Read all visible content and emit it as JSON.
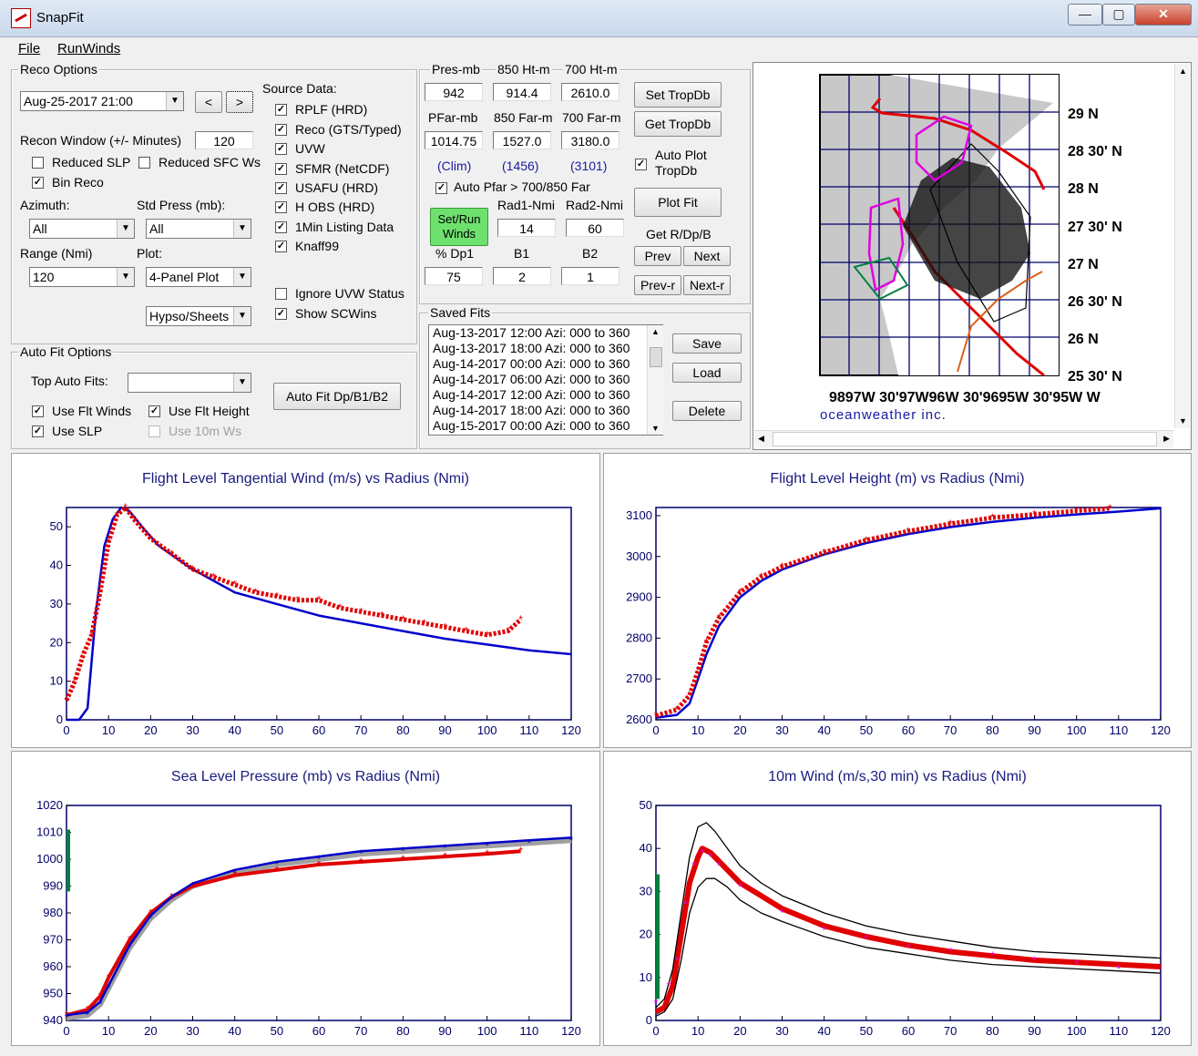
{
  "window": {
    "title": "SnapFit",
    "min": "—",
    "max": "▢",
    "close": "✕"
  },
  "menu": [
    {
      "label": "File"
    },
    {
      "label": "RunWinds"
    }
  ],
  "reco": {
    "title": "Reco Options",
    "datetime": "Aug-25-2017 21:00",
    "prev": "<",
    "next": ">",
    "window_label": "Recon Window (+/- Minutes)",
    "window_value": "120",
    "reduced_slp": "Reduced SLP",
    "reduced_sfc": "Reduced SFC Ws",
    "bin_reco": "Bin Reco",
    "azimuth_label": "Azimuth:",
    "azimuth": "All",
    "stdpress_label": "Std Press (mb):",
    "stdpress": "All",
    "range_label": "Range (Nmi)",
    "range": "120",
    "plot_label": "Plot:",
    "plot": "4-Panel Plot",
    "hypso": "Hypso/Sheets"
  },
  "source": {
    "title": "Source Data:",
    "items": [
      {
        "label": "RPLF (HRD)"
      },
      {
        "label": "Reco (GTS/Typed)"
      },
      {
        "label": "UVW"
      },
      {
        "label": "SFMR (NetCDF)"
      },
      {
        "label": "USAFU (HRD)"
      },
      {
        "label": "H OBS (HRD)"
      },
      {
        "label": "1Min Listing Data"
      },
      {
        "label": "Knaff99"
      }
    ],
    "ignore_uvw": "Ignore UVW Status",
    "show_scwins": "Show SCWins"
  },
  "params": {
    "pres_label": "Pres-mb",
    "h850_label": "850 Ht-m",
    "h700_label": "700 Ht-m",
    "pres": "942",
    "h850": "914.4",
    "h700": "2610.0",
    "pfar_label": "PFar-mb",
    "f850_label": "850 Far-m",
    "f700_label": "700 Far-m",
    "pfar": "1014.75",
    "f850": "1527.0",
    "f700": "3180.0",
    "clim1": "(Clim)",
    "clim2": "(1456)",
    "clim3": "(3101)",
    "auto_pfar": "Auto Pfar > 700/850 Far",
    "set_run": "Set/Run Winds",
    "rad1_label": "Rad1-Nmi",
    "rad2_label": "Rad2-Nmi",
    "rad1": "14",
    "rad2": "60",
    "dp1_label": "% Dp1",
    "b1_label": "B1",
    "b2_label": "B2",
    "dp1": "75",
    "b1": "2",
    "b2": "1",
    "set_tropdb": "Set TropDb",
    "get_tropdb": "Get TropDb",
    "auto_plot": "Auto Plot TropDb",
    "plot_fit": "Plot Fit",
    "get_r": "Get R/Dp/B",
    "prev": "Prev",
    "next": "Next",
    "prevr": "Prev-r",
    "nextr": "Next-r"
  },
  "saved": {
    "title": "Saved Fits",
    "items": [
      "Aug-13-2017 12:00 Azi: 000 to 360",
      "Aug-13-2017 18:00 Azi: 000 to 360",
      "Aug-14-2017 00:00 Azi: 000 to 360",
      "Aug-14-2017 06:00 Azi: 000 to 360",
      "Aug-14-2017 12:00 Azi: 000 to 360",
      "Aug-14-2017 18:00 Azi: 000 to 360",
      "Aug-15-2017 00:00 Azi: 000 to 360"
    ],
    "save": "Save",
    "load": "Load",
    "delete": "Delete"
  },
  "autofit": {
    "title": "Auto Fit Options",
    "top_label": "Top Auto Fits:",
    "use_flt_winds": "Use Flt Winds",
    "use_flt_height": "Use Flt Height",
    "use_slp": "Use SLP",
    "use_10m": "Use 10m Ws",
    "auto_fit_btn": "Auto Fit Dp/B1/B2"
  },
  "map": {
    "lat_labels": [
      "29 N",
      "28 30' N",
      "28 N",
      "27 30' N",
      "27 N",
      "26 30' N",
      "26 N",
      "25 30' N"
    ],
    "lon_labels": "9897W 30'97W96W 30'9695W 30'95W W",
    "brand": "oceanweather inc."
  },
  "colors": {
    "fit": "#0000cc",
    "obs": "#e00000",
    "mag": "#e000e0",
    "green": "#008040"
  },
  "chart_data": [
    {
      "type": "line",
      "title": "Flight Level Tangential Wind (m/s) vs Radius (Nmi)",
      "xlim": [
        0,
        120
      ],
      "ylim": [
        0,
        55
      ],
      "xticks": [
        0,
        10,
        20,
        30,
        40,
        50,
        60,
        70,
        80,
        90,
        100,
        110,
        120
      ],
      "yticks": [
        0,
        10,
        20,
        30,
        40,
        50
      ],
      "series": [
        {
          "x": [
            0,
            3,
            5,
            7,
            9,
            11,
            13,
            15,
            18,
            22,
            26,
            30,
            40,
            50,
            60,
            70,
            80,
            90,
            100,
            110,
            120
          ],
          "y": [
            0,
            0,
            3,
            28,
            45,
            52,
            55,
            54,
            50,
            45,
            42,
            39,
            33,
            30,
            27,
            25,
            23,
            21,
            19.5,
            18,
            17
          ]
        },
        {
          "x": [
            0,
            2,
            4,
            6,
            8,
            10,
            12,
            14,
            16,
            20,
            25,
            30,
            35,
            40,
            45,
            50,
            55,
            60,
            65,
            70,
            75,
            80,
            85,
            90,
            95,
            100,
            105,
            108
          ],
          "y": [
            5,
            10,
            17,
            22,
            33,
            46,
            53,
            55,
            52,
            47,
            43,
            39,
            37,
            35,
            33,
            32,
            31,
            31,
            29,
            28,
            27,
            26,
            25,
            24,
            23,
            22,
            23,
            26
          ]
        }
      ]
    },
    {
      "type": "line",
      "title": "Flight Level Height (m) vs Radius (Nmi)",
      "xlim": [
        0,
        120
      ],
      "ylim": [
        2600,
        3120
      ],
      "xticks": [
        0,
        10,
        20,
        30,
        40,
        50,
        60,
        70,
        80,
        90,
        100,
        110,
        120
      ],
      "yticks": [
        2600,
        2700,
        2800,
        2900,
        3000,
        3100
      ],
      "series": [
        {
          "x": [
            0,
            5,
            8,
            10,
            12,
            15,
            20,
            25,
            30,
            40,
            50,
            60,
            70,
            80,
            90,
            100,
            110,
            120
          ],
          "y": [
            2605,
            2612,
            2640,
            2700,
            2760,
            2830,
            2900,
            2940,
            2968,
            3005,
            3033,
            3055,
            3072,
            3085,
            3095,
            3103,
            3110,
            3118
          ]
        },
        {
          "x": [
            0,
            5,
            8,
            10,
            12,
            15,
            20,
            25,
            30,
            40,
            50,
            60,
            70,
            80,
            90,
            100,
            108
          ],
          "y": [
            2610,
            2625,
            2660,
            2720,
            2790,
            2850,
            2912,
            2950,
            2975,
            3010,
            3040,
            3062,
            3080,
            3095,
            3103,
            3112,
            3118
          ]
        }
      ]
    },
    {
      "type": "line",
      "title": "Sea Level Pressure (mb) vs Radius (Nmi)",
      "xlim": [
        0,
        120
      ],
      "ylim": [
        940,
        1020
      ],
      "xticks": [
        0,
        10,
        20,
        30,
        40,
        50,
        60,
        70,
        80,
        90,
        100,
        110,
        120
      ],
      "yticks": [
        940,
        950,
        960,
        970,
        980,
        990,
        1000,
        1010,
        1020
      ],
      "series": [
        {
          "x": [
            0,
            5,
            8,
            10,
            15,
            20,
            25,
            30,
            40,
            50,
            60,
            70,
            80,
            90,
            100,
            110,
            120
          ],
          "y": [
            941,
            942,
            946,
            952,
            967,
            978,
            985,
            990,
            995,
            998,
            1000,
            1002,
            1003,
            1004,
            1005,
            1006,
            1007
          ]
        },
        {
          "x": [
            0,
            5,
            8,
            10,
            15,
            20,
            25,
            30,
            40,
            50,
            60,
            70,
            80,
            90,
            100,
            108
          ],
          "y": [
            942,
            944,
            949,
            956,
            970,
            980,
            986,
            990,
            994,
            996,
            998,
            999,
            1000,
            1001,
            1002,
            1003
          ]
        }
      ]
    },
    {
      "type": "line",
      "title": "10m Wind (m/s,30 min) vs Radius (Nmi)",
      "xlim": [
        0,
        120
      ],
      "ylim": [
        0,
        50
      ],
      "xticks": [
        0,
        10,
        20,
        30,
        40,
        50,
        60,
        70,
        80,
        90,
        100,
        110,
        120
      ],
      "yticks": [
        0,
        10,
        20,
        30,
        40,
        50
      ],
      "series": [
        {
          "x": [
            0,
            2,
            4,
            6,
            8,
            10,
            11,
            13,
            16,
            20,
            25,
            30,
            40,
            50,
            60,
            70,
            80,
            90,
            100,
            110,
            120
          ],
          "y": [
            2,
            3,
            8,
            20,
            32,
            38,
            40,
            39,
            36,
            32,
            29,
            26,
            22,
            19.5,
            17.5,
            16,
            15,
            14,
            13.5,
            13,
            12.5
          ]
        },
        {
          "x": [
            0,
            2,
            4,
            6,
            8,
            10,
            12,
            14,
            17,
            20,
            25,
            30,
            40,
            50,
            60,
            70,
            80,
            90,
            100,
            110,
            120
          ],
          "y": [
            3,
            5,
            12,
            25,
            38,
            45,
            46,
            44,
            40,
            36,
            32,
            29,
            25,
            22,
            20,
            18.5,
            17,
            16,
            15.5,
            15,
            14.5
          ]
        },
        {
          "x": [
            0,
            2,
            4,
            6,
            8,
            10,
            12,
            14,
            17,
            20,
            25,
            30,
            40,
            50,
            60,
            70,
            80,
            90,
            100,
            110,
            120
          ],
          "y": [
            1,
            2,
            5,
            14,
            25,
            31,
            33,
            33,
            31,
            28,
            25,
            23,
            19.5,
            17,
            15.5,
            14,
            13,
            12.5,
            12,
            11.5,
            11
          ]
        },
        {
          "x": [
            0,
            3,
            5,
            7,
            9,
            11,
            13,
            15,
            20,
            30,
            40,
            50,
            60,
            70,
            80,
            90,
            100,
            110
          ],
          "y": [
            4,
            8,
            14,
            27,
            36,
            39,
            38,
            36,
            31,
            25,
            21,
            19,
            17,
            16,
            15,
            14,
            13,
            12
          ]
        }
      ]
    }
  ]
}
